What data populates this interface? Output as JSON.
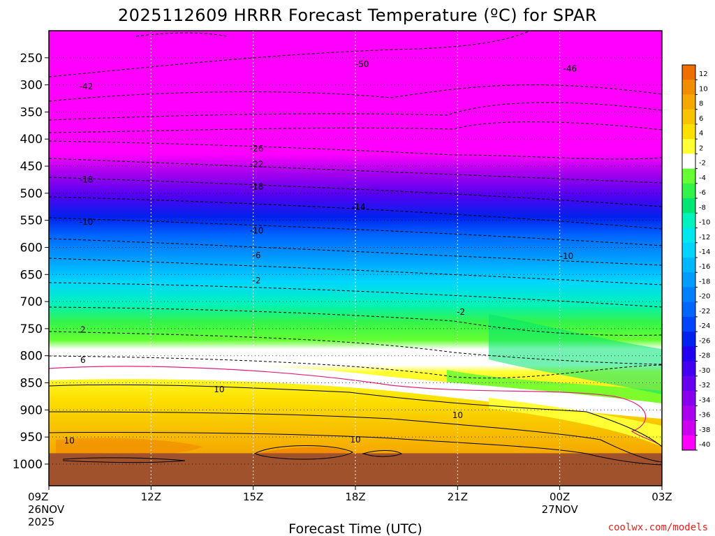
{
  "chart_data": {
    "type": "heatmap",
    "title": "2025112609 HRRR Forecast Temperature (ºC) for SPAR",
    "xlabel": "Forecast Time (UTC)",
    "ylabel": "",
    "x_ticks": [
      {
        "label": "09Z",
        "sub": [
          "26NOV",
          "2025"
        ],
        "hours": 0
      },
      {
        "label": "12Z",
        "sub": [],
        "hours": 3
      },
      {
        "label": "15Z",
        "sub": [],
        "hours": 6
      },
      {
        "label": "18Z",
        "sub": [],
        "hours": 9
      },
      {
        "label": "21Z",
        "sub": [],
        "hours": 12
      },
      {
        "label": "00Z",
        "sub": [
          "27NOV"
        ],
        "hours": 15
      },
      {
        "label": "03Z",
        "sub": [],
        "hours": 18
      }
    ],
    "y_ticks": [
      250,
      300,
      350,
      400,
      450,
      500,
      550,
      600,
      650,
      700,
      750,
      800,
      850,
      900,
      950,
      1000
    ],
    "xlim_hours": [
      0,
      18
    ],
    "ylim_hpa": [
      200,
      1040
    ],
    "ground_level_hpa": 980,
    "colorbar": {
      "labels": [
        "12",
        "10",
        "8",
        "6",
        "4",
        "2",
        "-2",
        "-4",
        "-6",
        "-8",
        "-10",
        "-12",
        "-14",
        "-16",
        "-18",
        "-20",
        "-22",
        "-24",
        "-26",
        "-28",
        "-30",
        "-32",
        "-34",
        "-36",
        "-38",
        "-40"
      ],
      "colors": [
        "#ee6f00",
        "#f28d00",
        "#f5a800",
        "#f8c300",
        "#fce000",
        "#ffff33",
        "#ffffff",
        "#66ff33",
        "#33f34b",
        "#00e573",
        "#00f2bd",
        "#00e8ef",
        "#00d4ff",
        "#00b8ff",
        "#009cff",
        "#0080ff",
        "#0066ff",
        "#0044ff",
        "#0022ee",
        "#2200f0",
        "#4400f0",
        "#6600ee",
        "#8800ee",
        "#aa00ee",
        "#cc00ee",
        "#ff00ff"
      ]
    },
    "contour_labels": [
      {
        "text": "-50",
        "hours": 9.2,
        "hpa": 262
      },
      {
        "text": "-46",
        "hours": 15.3,
        "hpa": 270
      },
      {
        "text": "-42",
        "hours": 1.1,
        "hpa": 303
      },
      {
        "text": "-26",
        "hours": 6.1,
        "hpa": 418
      },
      {
        "text": "-22",
        "hours": 6.1,
        "hpa": 447
      },
      {
        "text": "-18",
        "hours": 1.1,
        "hpa": 475
      },
      {
        "text": "-18",
        "hours": 6.1,
        "hpa": 488
      },
      {
        "text": "-14",
        "hours": 9.1,
        "hpa": 525
      },
      {
        "text": "-10",
        "hours": 1.1,
        "hpa": 553
      },
      {
        "text": "-10",
        "hours": 6.1,
        "hpa": 569
      },
      {
        "text": "-6",
        "hours": 6.1,
        "hpa": 615
      },
      {
        "text": "-2",
        "hours": 6.1,
        "hpa": 661
      },
      {
        "text": "-10",
        "hours": 15.2,
        "hpa": 616
      },
      {
        "text": "-2",
        "hours": 12.1,
        "hpa": 719
      },
      {
        "text": "2",
        "hours": 1.0,
        "hpa": 752
      },
      {
        "text": "6",
        "hours": 1.0,
        "hpa": 808
      },
      {
        "text": "10",
        "hours": 5.0,
        "hpa": 862
      },
      {
        "text": "10",
        "hours": 12.0,
        "hpa": 910
      },
      {
        "text": "10",
        "hours": 9.0,
        "hpa": 955
      },
      {
        "text": "10",
        "hours": 0.6,
        "hpa": 957
      }
    ]
  },
  "credit": "coolwx.com/models"
}
